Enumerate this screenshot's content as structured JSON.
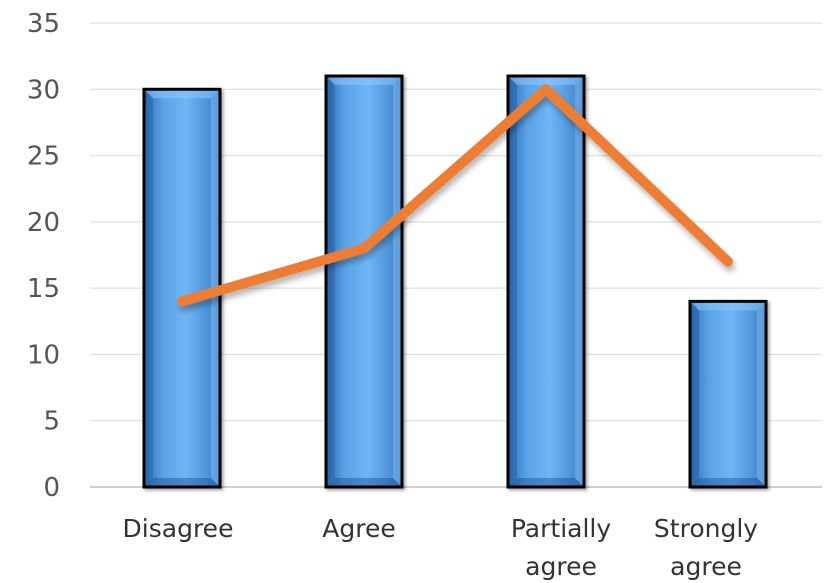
{
  "chart_data": {
    "type": "bar",
    "categories": [
      [
        "Disagree"
      ],
      [
        "Agree"
      ],
      [
        "Partially",
        "agree"
      ],
      [
        "Strongly",
        "agree"
      ]
    ],
    "series": [
      {
        "type": "bar",
        "values": [
          30,
          31,
          31,
          14
        ],
        "color": "#4a8fd6"
      },
      {
        "type": "line",
        "values": [
          14,
          18,
          30,
          17
        ],
        "color": "#ed7d31"
      }
    ],
    "ylim": [
      0,
      35
    ],
    "yticks": [
      0,
      5,
      10,
      15,
      20,
      25,
      30,
      35
    ],
    "grid": true,
    "legend": "none"
  }
}
